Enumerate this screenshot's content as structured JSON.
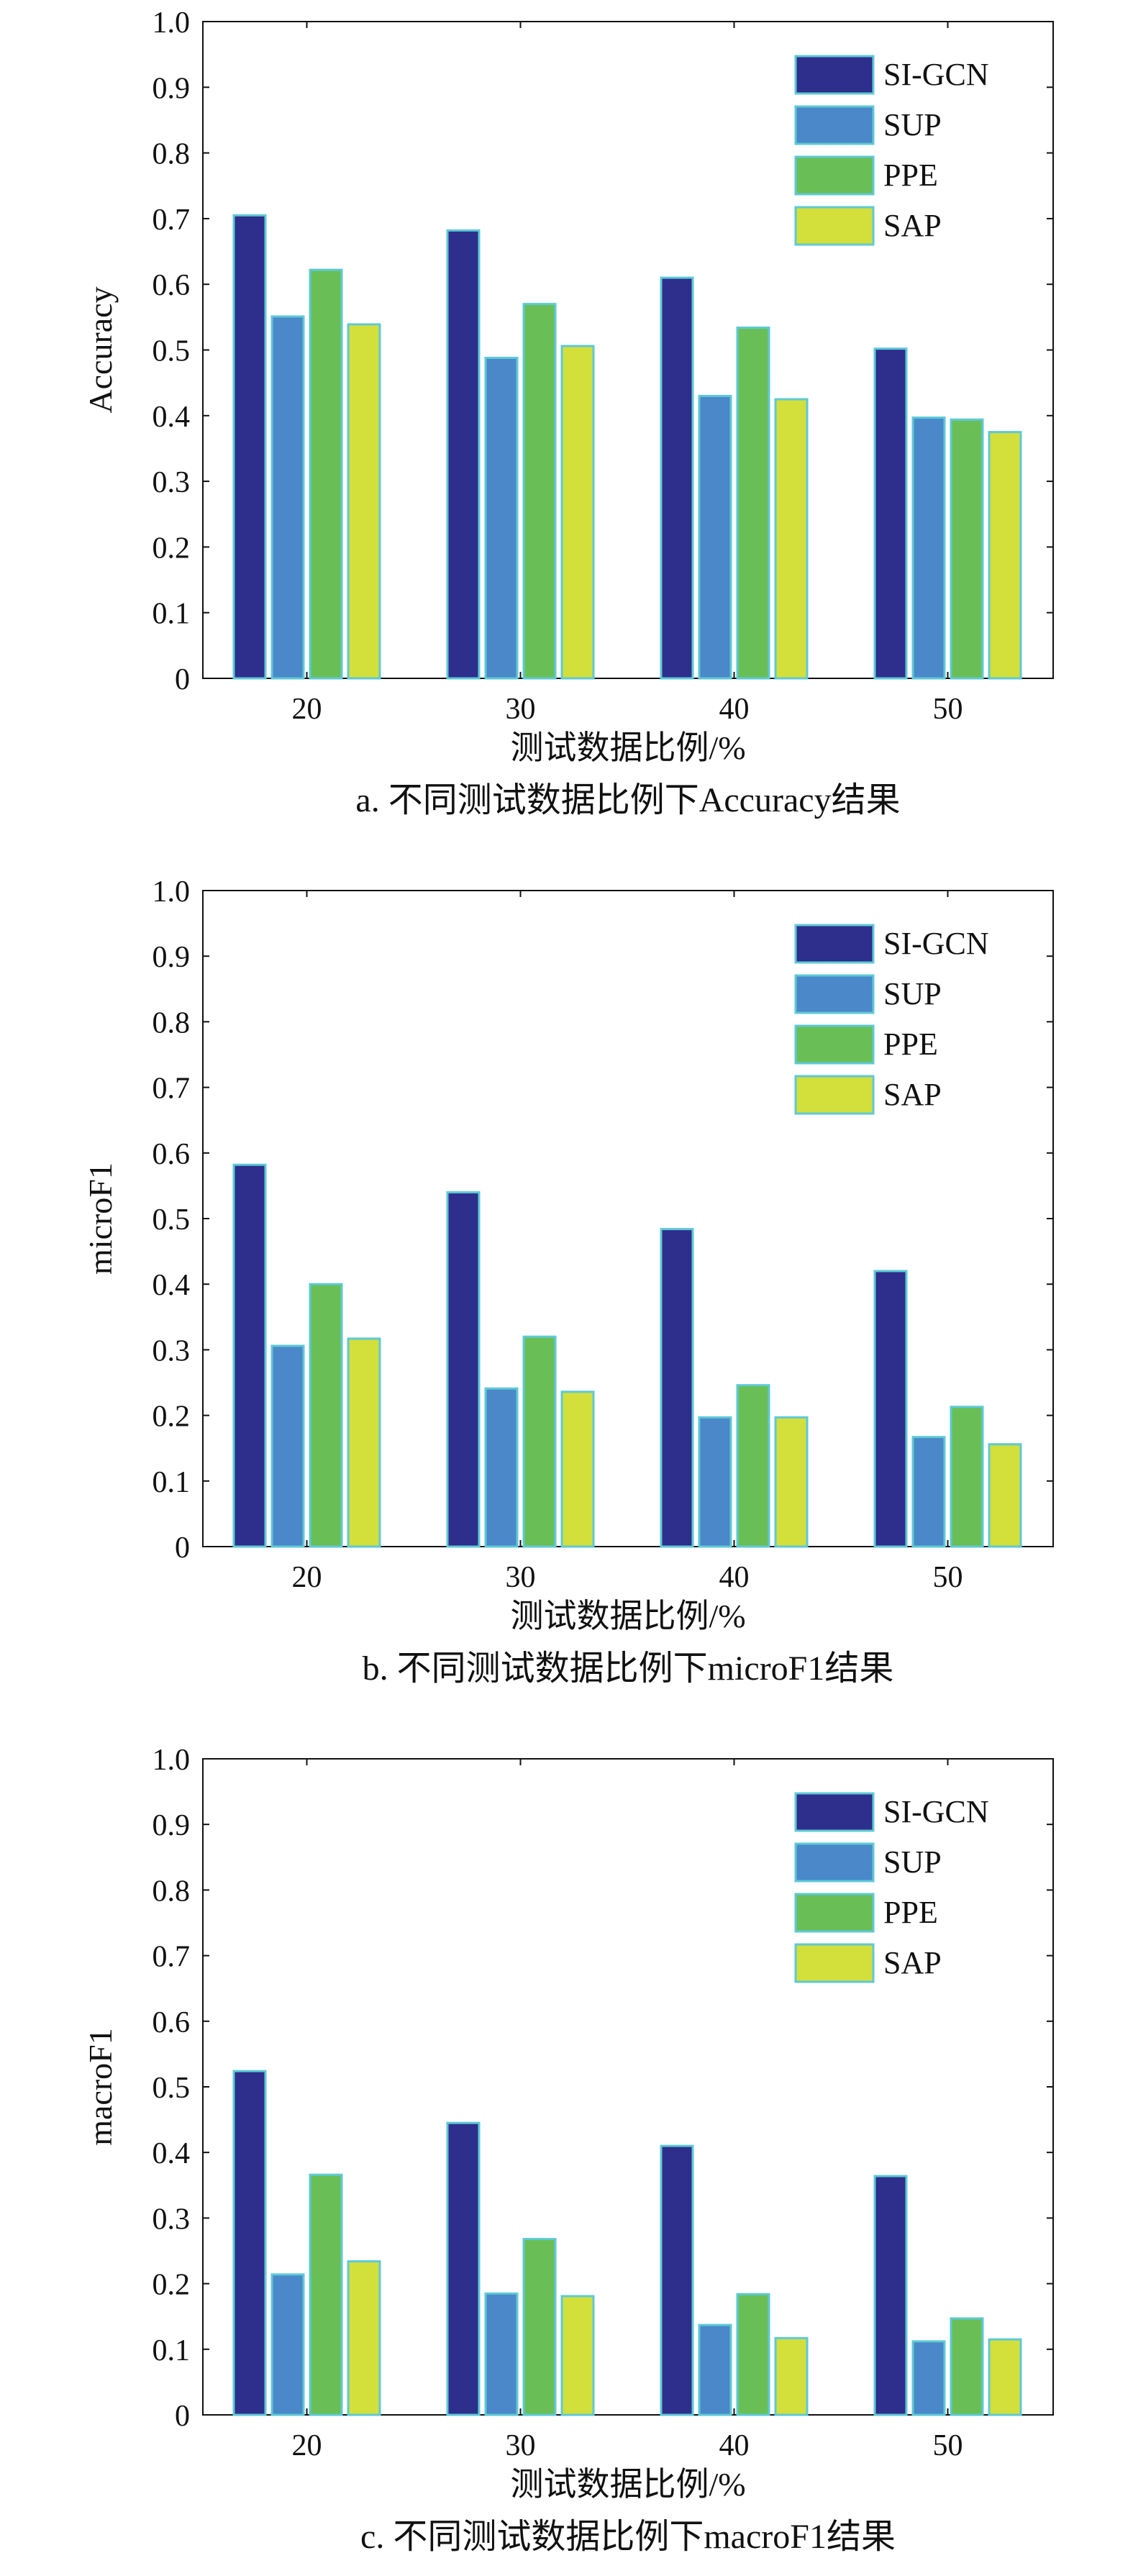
{
  "legend_labels": [
    "SI-GCN",
    "SUP",
    "PPE",
    "SAP"
  ],
  "colors": {
    "SI-GCN": "#2e2e8c",
    "SUP": "#4a88c9",
    "PPE": "#69bf55",
    "SAP": "#d3df3a",
    "bar_edge": "#5ec9d6",
    "axis": "#111111"
  },
  "chart_data": [
    {
      "type": "bar",
      "title": "a. 不同测试数据比例下Accuracy结果",
      "xlabel": "测试数据比例/%",
      "ylabel": "Accuracy",
      "categories": [
        "20",
        "30",
        "40",
        "50"
      ],
      "ylim": [
        0,
        1.0
      ],
      "yticks": [
        "0",
        "0.1",
        "0.2",
        "0.3",
        "0.4",
        "0.5",
        "0.6",
        "0.7",
        "0.8",
        "0.9",
        "1.0"
      ],
      "grid": false,
      "legend_position": "top-right",
      "series": [
        {
          "name": "SI-GCN",
          "values": [
            0.705,
            0.682,
            0.61,
            0.502
          ]
        },
        {
          "name": "SUP",
          "values": [
            0.551,
            0.488,
            0.43,
            0.397
          ]
        },
        {
          "name": "PPE",
          "values": [
            0.622,
            0.57,
            0.534,
            0.394
          ]
        },
        {
          "name": "SAP",
          "values": [
            0.539,
            0.506,
            0.425,
            0.375
          ]
        }
      ]
    },
    {
      "type": "bar",
      "title": "b. 不同测试数据比例下microF1结果",
      "xlabel": "测试数据比例/%",
      "ylabel": "microF1",
      "categories": [
        "20",
        "30",
        "40",
        "50"
      ],
      "ylim": [
        0,
        1.0
      ],
      "yticks": [
        "0",
        "0.1",
        "0.2",
        "0.3",
        "0.4",
        "0.5",
        "0.6",
        "0.7",
        "0.8",
        "0.9",
        "1.0"
      ],
      "grid": false,
      "legend_position": "top-right",
      "series": [
        {
          "name": "SI-GCN",
          "values": [
            0.582,
            0.54,
            0.484,
            0.42
          ]
        },
        {
          "name": "SUP",
          "values": [
            0.306,
            0.241,
            0.197,
            0.167
          ]
        },
        {
          "name": "PPE",
          "values": [
            0.4,
            0.32,
            0.246,
            0.213
          ]
        },
        {
          "name": "SAP",
          "values": [
            0.317,
            0.236,
            0.197,
            0.156
          ]
        }
      ]
    },
    {
      "type": "bar",
      "title": "c. 不同测试数据比例下macroF1结果",
      "xlabel": "测试数据比例/%",
      "ylabel": "macroF1",
      "categories": [
        "20",
        "30",
        "40",
        "50"
      ],
      "ylim": [
        0,
        1.0
      ],
      "yticks": [
        "0",
        "0.1",
        "0.2",
        "0.3",
        "0.4",
        "0.5",
        "0.6",
        "0.7",
        "0.8",
        "0.9",
        "1.0"
      ],
      "grid": false,
      "legend_position": "top-right",
      "series": [
        {
          "name": "SI-GCN",
          "values": [
            0.524,
            0.445,
            0.41,
            0.364
          ]
        },
        {
          "name": "SUP",
          "values": [
            0.214,
            0.185,
            0.137,
            0.112
          ]
        },
        {
          "name": "PPE",
          "values": [
            0.366,
            0.268,
            0.184,
            0.147
          ]
        },
        {
          "name": "SAP",
          "values": [
            0.234,
            0.181,
            0.117,
            0.115
          ]
        }
      ]
    }
  ]
}
